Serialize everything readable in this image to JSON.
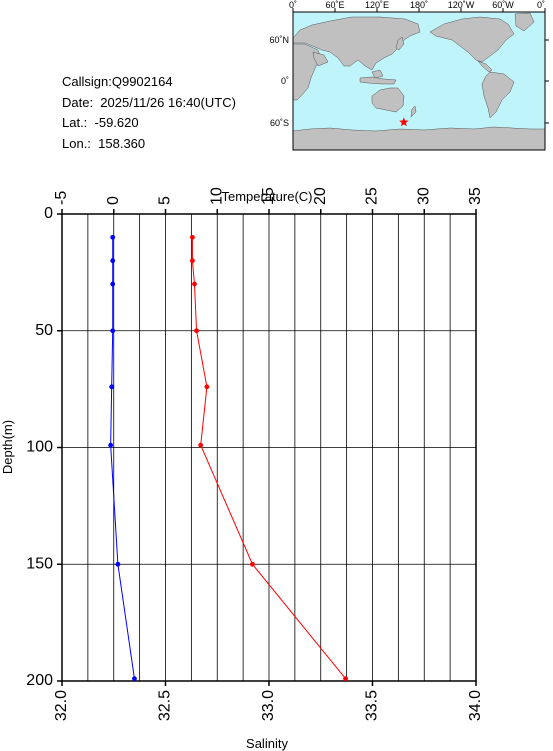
{
  "station": {
    "callsign": "Callsign:Q9902164",
    "date": "Date:  2025/11/26 16:40(UTC)",
    "lat": "Lat.:  -59.620",
    "lon": "Lon.:  158.360"
  },
  "map": {
    "top_labels": [
      "0˚",
      "60˚E",
      "120˚E",
      "180˚",
      "120˚W",
      "60˚W",
      "0˚"
    ],
    "right_labels": [
      "60˚N",
      "0˚",
      "60˚S"
    ],
    "ocean_color": "#bff4fa",
    "land_color": "#c0c0c0",
    "marker": {
      "lat": -59.62,
      "lon": 158.36,
      "color": "#ff0000",
      "symbol": "star"
    }
  },
  "chart_data": {
    "type": "line",
    "title": "",
    "y_axis": {
      "label": "Depth(m)",
      "range": [
        0,
        200
      ],
      "ticks": [
        0,
        50,
        100,
        150,
        200
      ],
      "inverted": true
    },
    "top_axis": {
      "label": "Temperature(C)",
      "range": [
        -5,
        35
      ],
      "ticks": [
        -5,
        0,
        5,
        10,
        15,
        20,
        25,
        30,
        35
      ]
    },
    "bottom_axis": {
      "label": "Salinity",
      "range": [
        32.0,
        34.0
      ],
      "ticks": [
        "32.0",
        "32.5",
        "33.0",
        "33.5",
        "34.0"
      ]
    },
    "grid": true,
    "series": [
      {
        "axis": "temperature",
        "color": "#ff0000",
        "depth": [
          10,
          20,
          30,
          50,
          74,
          99,
          150,
          199
        ],
        "values": [
          7.6,
          7.6,
          7.8,
          8.0,
          9.0,
          8.4,
          13.4,
          22.4
        ]
      },
      {
        "axis": "salinity",
        "color": "#0000ff",
        "depth": [
          10,
          20,
          30,
          50,
          74,
          99,
          150,
          199
        ],
        "values": [
          32.245,
          32.245,
          32.245,
          32.245,
          32.24,
          32.235,
          32.27,
          32.35
        ]
      }
    ]
  }
}
